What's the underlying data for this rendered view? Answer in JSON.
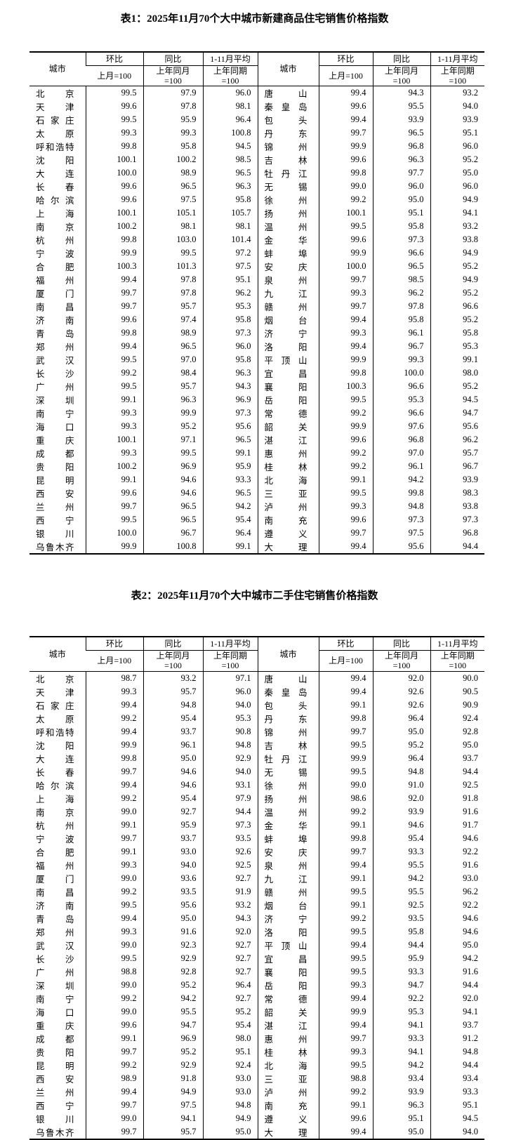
{
  "page": {
    "background": "#ffffff",
    "text_color": "#000000"
  },
  "tables": [
    {
      "id": "table1",
      "title": "表1：2025年11月70个大中城市新建商品住宅销售价格指数",
      "header": {
        "city": "城市",
        "mom": "环比",
        "yoy": "同比",
        "avg": "1-11月平均",
        "mom_base": "上月=100",
        "yoy_base1": "上年同月",
        "yoy_base2": "=100",
        "avg_base1": "上年同期",
        "avg_base2": "=100"
      },
      "left_rows": [
        {
          "city": "北京",
          "mom": "99.5",
          "yoy": "97.9",
          "avg": "96.0"
        },
        {
          "city": "天津",
          "mom": "99.6",
          "yoy": "97.8",
          "avg": "98.1"
        },
        {
          "city": "石家庄",
          "mom": "99.5",
          "yoy": "95.9",
          "avg": "96.4"
        },
        {
          "city": "太原",
          "mom": "99.3",
          "yoy": "99.3",
          "avg": "100.8"
        },
        {
          "city": "呼和浩特",
          "mom": "99.8",
          "yoy": "95.8",
          "avg": "94.5"
        },
        {
          "city": "沈阳",
          "mom": "100.1",
          "yoy": "100.2",
          "avg": "98.5"
        },
        {
          "city": "大连",
          "mom": "100.0",
          "yoy": "98.9",
          "avg": "96.5"
        },
        {
          "city": "长春",
          "mom": "99.6",
          "yoy": "96.5",
          "avg": "96.3"
        },
        {
          "city": "哈尔滨",
          "mom": "99.6",
          "yoy": "97.5",
          "avg": "95.8"
        },
        {
          "city": "上海",
          "mom": "100.1",
          "yoy": "105.1",
          "avg": "105.7"
        },
        {
          "city": "南京",
          "mom": "100.2",
          "yoy": "98.1",
          "avg": "98.1"
        },
        {
          "city": "杭州",
          "mom": "99.8",
          "yoy": "103.0",
          "avg": "101.4"
        },
        {
          "city": "宁波",
          "mom": "99.9",
          "yoy": "99.5",
          "avg": "97.2"
        },
        {
          "city": "合肥",
          "mom": "100.3",
          "yoy": "101.3",
          "avg": "97.5"
        },
        {
          "city": "福州",
          "mom": "99.4",
          "yoy": "97.8",
          "avg": "95.1"
        },
        {
          "city": "厦门",
          "mom": "99.7",
          "yoy": "97.8",
          "avg": "96.2"
        },
        {
          "city": "南昌",
          "mom": "99.7",
          "yoy": "95.7",
          "avg": "95.3"
        },
        {
          "city": "济南",
          "mom": "99.6",
          "yoy": "97.4",
          "avg": "95.8"
        },
        {
          "city": "青岛",
          "mom": "99.8",
          "yoy": "98.9",
          "avg": "97.3"
        },
        {
          "city": "郑州",
          "mom": "99.4",
          "yoy": "96.5",
          "avg": "96.0"
        },
        {
          "city": "武汉",
          "mom": "99.5",
          "yoy": "97.0",
          "avg": "95.8"
        },
        {
          "city": "长沙",
          "mom": "99.2",
          "yoy": "98.4",
          "avg": "96.3"
        },
        {
          "city": "广州",
          "mom": "99.5",
          "yoy": "95.7",
          "avg": "94.3"
        },
        {
          "city": "深圳",
          "mom": "99.1",
          "yoy": "96.3",
          "avg": "96.9"
        },
        {
          "city": "南宁",
          "mom": "99.3",
          "yoy": "99.9",
          "avg": "97.3"
        },
        {
          "city": "海口",
          "mom": "99.3",
          "yoy": "95.2",
          "avg": "95.6"
        },
        {
          "city": "重庆",
          "mom": "100.1",
          "yoy": "97.1",
          "avg": "96.5"
        },
        {
          "city": "成都",
          "mom": "99.3",
          "yoy": "99.5",
          "avg": "99.1"
        },
        {
          "city": "贵阳",
          "mom": "100.2",
          "yoy": "96.9",
          "avg": "95.9"
        },
        {
          "city": "昆明",
          "mom": "99.1",
          "yoy": "94.6",
          "avg": "93.3"
        },
        {
          "city": "西安",
          "mom": "99.6",
          "yoy": "94.6",
          "avg": "96.5"
        },
        {
          "city": "兰州",
          "mom": "99.7",
          "yoy": "96.5",
          "avg": "94.2"
        },
        {
          "city": "西宁",
          "mom": "99.5",
          "yoy": "96.5",
          "avg": "95.4"
        },
        {
          "city": "银川",
          "mom": "100.0",
          "yoy": "96.7",
          "avg": "96.4"
        },
        {
          "city": "乌鲁木齐",
          "mom": "99.9",
          "yoy": "100.8",
          "avg": "99.1"
        }
      ],
      "right_rows": [
        {
          "city": "唐山",
          "mom": "99.4",
          "yoy": "94.3",
          "avg": "93.2"
        },
        {
          "city": "秦皇岛",
          "mom": "99.6",
          "yoy": "95.5",
          "avg": "94.0"
        },
        {
          "city": "包头",
          "mom": "99.4",
          "yoy": "93.9",
          "avg": "93.9"
        },
        {
          "city": "丹东",
          "mom": "99.7",
          "yoy": "96.5",
          "avg": "95.1"
        },
        {
          "city": "锦州",
          "mom": "99.9",
          "yoy": "96.8",
          "avg": "96.0"
        },
        {
          "city": "吉林",
          "mom": "99.6",
          "yoy": "96.3",
          "avg": "95.2"
        },
        {
          "city": "牡丹江",
          "mom": "99.8",
          "yoy": "97.7",
          "avg": "95.0"
        },
        {
          "city": "无锡",
          "mom": "99.0",
          "yoy": "96.0",
          "avg": "96.0"
        },
        {
          "city": "徐州",
          "mom": "99.2",
          "yoy": "95.0",
          "avg": "94.9"
        },
        {
          "city": "扬州",
          "mom": "100.1",
          "yoy": "95.1",
          "avg": "94.1"
        },
        {
          "city": "温州",
          "mom": "99.5",
          "yoy": "95.8",
          "avg": "93.2"
        },
        {
          "city": "金华",
          "mom": "99.6",
          "yoy": "97.3",
          "avg": "93.8"
        },
        {
          "city": "蚌埠",
          "mom": "99.9",
          "yoy": "96.6",
          "avg": "94.9"
        },
        {
          "city": "安庆",
          "mom": "100.0",
          "yoy": "96.5",
          "avg": "95.2"
        },
        {
          "city": "泉州",
          "mom": "99.7",
          "yoy": "98.5",
          "avg": "94.9"
        },
        {
          "city": "九江",
          "mom": "99.3",
          "yoy": "96.2",
          "avg": "95.2"
        },
        {
          "city": "赣州",
          "mom": "99.7",
          "yoy": "97.8",
          "avg": "96.6"
        },
        {
          "city": "烟台",
          "mom": "99.4",
          "yoy": "95.8",
          "avg": "95.2"
        },
        {
          "city": "济宁",
          "mom": "99.3",
          "yoy": "96.1",
          "avg": "95.8"
        },
        {
          "city": "洛阳",
          "mom": "99.4",
          "yoy": "96.7",
          "avg": "95.3"
        },
        {
          "city": "平顶山",
          "mom": "99.9",
          "yoy": "99.3",
          "avg": "99.1"
        },
        {
          "city": "宜昌",
          "mom": "99.8",
          "yoy": "100.0",
          "avg": "98.0"
        },
        {
          "city": "襄阳",
          "mom": "100.3",
          "yoy": "96.6",
          "avg": "95.2"
        },
        {
          "city": "岳阳",
          "mom": "99.5",
          "yoy": "95.3",
          "avg": "94.5"
        },
        {
          "city": "常德",
          "mom": "99.2",
          "yoy": "96.6",
          "avg": "94.7"
        },
        {
          "city": "韶关",
          "mom": "99.9",
          "yoy": "97.6",
          "avg": "95.6"
        },
        {
          "city": "湛江",
          "mom": "99.6",
          "yoy": "96.8",
          "avg": "96.2"
        },
        {
          "city": "惠州",
          "mom": "99.2",
          "yoy": "97.0",
          "avg": "95.7"
        },
        {
          "city": "桂林",
          "mom": "99.2",
          "yoy": "96.1",
          "avg": "96.7"
        },
        {
          "city": "北海",
          "mom": "99.1",
          "yoy": "94.2",
          "avg": "93.9"
        },
        {
          "city": "三亚",
          "mom": "99.5",
          "yoy": "99.8",
          "avg": "98.3"
        },
        {
          "city": "泸州",
          "mom": "99.3",
          "yoy": "94.8",
          "avg": "93.8"
        },
        {
          "city": "南充",
          "mom": "99.6",
          "yoy": "97.3",
          "avg": "97.3"
        },
        {
          "city": "遵义",
          "mom": "99.7",
          "yoy": "97.5",
          "avg": "96.8"
        },
        {
          "city": "大理",
          "mom": "99.4",
          "yoy": "95.6",
          "avg": "94.4"
        }
      ]
    },
    {
      "id": "table2",
      "title": "表2：2025年11月70个大中城市二手住宅销售价格指数",
      "header": {
        "city": "城市",
        "mom": "环比",
        "yoy": "同比",
        "avg": "1-11月平均",
        "mom_base": "上月=100",
        "yoy_base1": "上年同月",
        "yoy_base2": "=100",
        "avg_base1": "上年同期",
        "avg_base2": "=100"
      },
      "left_rows": [
        {
          "city": "北京",
          "mom": "98.7",
          "yoy": "93.2",
          "avg": "97.1"
        },
        {
          "city": "天津",
          "mom": "99.3",
          "yoy": "95.7",
          "avg": "96.0"
        },
        {
          "city": "石家庄",
          "mom": "99.4",
          "yoy": "94.8",
          "avg": "94.0"
        },
        {
          "city": "太原",
          "mom": "99.2",
          "yoy": "95.4",
          "avg": "95.3"
        },
        {
          "city": "呼和浩特",
          "mom": "99.4",
          "yoy": "93.7",
          "avg": "90.8"
        },
        {
          "city": "沈阳",
          "mom": "99.9",
          "yoy": "96.1",
          "avg": "94.8"
        },
        {
          "city": "大连",
          "mom": "99.8",
          "yoy": "95.0",
          "avg": "92.9"
        },
        {
          "city": "长春",
          "mom": "99.7",
          "yoy": "94.6",
          "avg": "94.0"
        },
        {
          "city": "哈尔滨",
          "mom": "99.4",
          "yoy": "94.6",
          "avg": "93.1"
        },
        {
          "city": "上海",
          "mom": "99.2",
          "yoy": "95.4",
          "avg": "97.9"
        },
        {
          "city": "南京",
          "mom": "99.0",
          "yoy": "92.7",
          "avg": "94.4"
        },
        {
          "city": "杭州",
          "mom": "99.1",
          "yoy": "95.9",
          "avg": "97.3"
        },
        {
          "city": "宁波",
          "mom": "99.7",
          "yoy": "93.7",
          "avg": "93.5"
        },
        {
          "city": "合肥",
          "mom": "99.1",
          "yoy": "93.0",
          "avg": "92.6"
        },
        {
          "city": "福州",
          "mom": "99.3",
          "yoy": "94.0",
          "avg": "92.5"
        },
        {
          "city": "厦门",
          "mom": "99.0",
          "yoy": "93.6",
          "avg": "92.7"
        },
        {
          "city": "南昌",
          "mom": "99.2",
          "yoy": "93.5",
          "avg": "91.9"
        },
        {
          "city": "济南",
          "mom": "99.5",
          "yoy": "95.6",
          "avg": "93.2"
        },
        {
          "city": "青岛",
          "mom": "99.4",
          "yoy": "95.0",
          "avg": "94.3"
        },
        {
          "city": "郑州",
          "mom": "99.3",
          "yoy": "91.6",
          "avg": "92.0"
        },
        {
          "city": "武汉",
          "mom": "99.0",
          "yoy": "92.3",
          "avg": "92.7"
        },
        {
          "city": "长沙",
          "mom": "99.5",
          "yoy": "92.9",
          "avg": "92.7"
        },
        {
          "city": "广州",
          "mom": "98.8",
          "yoy": "92.8",
          "avg": "92.7"
        },
        {
          "city": "深圳",
          "mom": "99.0",
          "yoy": "95.2",
          "avg": "96.4"
        },
        {
          "city": "南宁",
          "mom": "99.2",
          "yoy": "94.2",
          "avg": "92.7"
        },
        {
          "city": "海口",
          "mom": "99.0",
          "yoy": "95.5",
          "avg": "95.2"
        },
        {
          "city": "重庆",
          "mom": "99.6",
          "yoy": "94.7",
          "avg": "95.4"
        },
        {
          "city": "成都",
          "mom": "99.1",
          "yoy": "96.9",
          "avg": "98.0"
        },
        {
          "city": "贵阳",
          "mom": "99.7",
          "yoy": "95.2",
          "avg": "95.1"
        },
        {
          "city": "昆明",
          "mom": "99.2",
          "yoy": "92.9",
          "avg": "92.4"
        },
        {
          "city": "西安",
          "mom": "98.9",
          "yoy": "91.8",
          "avg": "93.0"
        },
        {
          "city": "兰州",
          "mom": "99.4",
          "yoy": "94.9",
          "avg": "93.0"
        },
        {
          "city": "西宁",
          "mom": "99.7",
          "yoy": "97.5",
          "avg": "94.8"
        },
        {
          "city": "银川",
          "mom": "99.0",
          "yoy": "94.1",
          "avg": "94.9"
        },
        {
          "city": "乌鲁木齐",
          "mom": "99.7",
          "yoy": "95.7",
          "avg": "95.0"
        }
      ],
      "right_rows": [
        {
          "city": "唐山",
          "mom": "99.4",
          "yoy": "92.0",
          "avg": "90.0"
        },
        {
          "city": "秦皇岛",
          "mom": "99.4",
          "yoy": "92.6",
          "avg": "90.5"
        },
        {
          "city": "包头",
          "mom": "99.1",
          "yoy": "92.6",
          "avg": "90.9"
        },
        {
          "city": "丹东",
          "mom": "99.8",
          "yoy": "96.4",
          "avg": "92.4"
        },
        {
          "city": "锦州",
          "mom": "99.7",
          "yoy": "95.0",
          "avg": "92.8"
        },
        {
          "city": "吉林",
          "mom": "99.5",
          "yoy": "95.2",
          "avg": "95.0"
        },
        {
          "city": "牡丹江",
          "mom": "99.9",
          "yoy": "96.4",
          "avg": "93.7"
        },
        {
          "city": "无锡",
          "mom": "99.5",
          "yoy": "94.8",
          "avg": "94.4"
        },
        {
          "city": "徐州",
          "mom": "99.0",
          "yoy": "91.0",
          "avg": "92.5"
        },
        {
          "city": "扬州",
          "mom": "98.6",
          "yoy": "92.0",
          "avg": "91.8"
        },
        {
          "city": "温州",
          "mom": "99.2",
          "yoy": "93.9",
          "avg": "91.6"
        },
        {
          "city": "金华",
          "mom": "99.1",
          "yoy": "94.6",
          "avg": "91.7"
        },
        {
          "city": "蚌埠",
          "mom": "99.8",
          "yoy": "95.4",
          "avg": "94.6"
        },
        {
          "city": "安庆",
          "mom": "99.7",
          "yoy": "93.3",
          "avg": "92.2"
        },
        {
          "city": "泉州",
          "mom": "99.4",
          "yoy": "95.5",
          "avg": "91.6"
        },
        {
          "city": "九江",
          "mom": "99.1",
          "yoy": "94.2",
          "avg": "93.0"
        },
        {
          "city": "赣州",
          "mom": "99.5",
          "yoy": "95.5",
          "avg": "96.2"
        },
        {
          "city": "烟台",
          "mom": "99.1",
          "yoy": "92.5",
          "avg": "92.2"
        },
        {
          "city": "济宁",
          "mom": "99.2",
          "yoy": "93.5",
          "avg": "94.6"
        },
        {
          "city": "洛阳",
          "mom": "99.5",
          "yoy": "95.8",
          "avg": "94.6"
        },
        {
          "city": "平顶山",
          "mom": "99.4",
          "yoy": "94.4",
          "avg": "95.0"
        },
        {
          "city": "宜昌",
          "mom": "99.5",
          "yoy": "95.9",
          "avg": "94.2"
        },
        {
          "city": "襄阳",
          "mom": "99.5",
          "yoy": "93.3",
          "avg": "91.6"
        },
        {
          "city": "岳阳",
          "mom": "99.3",
          "yoy": "94.7",
          "avg": "94.4"
        },
        {
          "city": "常德",
          "mom": "99.4",
          "yoy": "92.2",
          "avg": "92.0"
        },
        {
          "city": "韶关",
          "mom": "99.9",
          "yoy": "95.3",
          "avg": "94.1"
        },
        {
          "city": "湛江",
          "mom": "99.4",
          "yoy": "94.1",
          "avg": "93.7"
        },
        {
          "city": "惠州",
          "mom": "99.7",
          "yoy": "93.3",
          "avg": "91.2"
        },
        {
          "city": "桂林",
          "mom": "99.3",
          "yoy": "94.1",
          "avg": "94.8"
        },
        {
          "city": "北海",
          "mom": "99.5",
          "yoy": "94.2",
          "avg": "94.4"
        },
        {
          "city": "三亚",
          "mom": "98.8",
          "yoy": "93.4",
          "avg": "93.4"
        },
        {
          "city": "泸州",
          "mom": "99.2",
          "yoy": "93.9",
          "avg": "93.3"
        },
        {
          "city": "南充",
          "mom": "99.1",
          "yoy": "96.3",
          "avg": "95.1"
        },
        {
          "city": "遵义",
          "mom": "99.6",
          "yoy": "95.1",
          "avg": "94.5"
        },
        {
          "city": "大理",
          "mom": "99.4",
          "yoy": "95.0",
          "avg": "94.0"
        }
      ]
    }
  ]
}
